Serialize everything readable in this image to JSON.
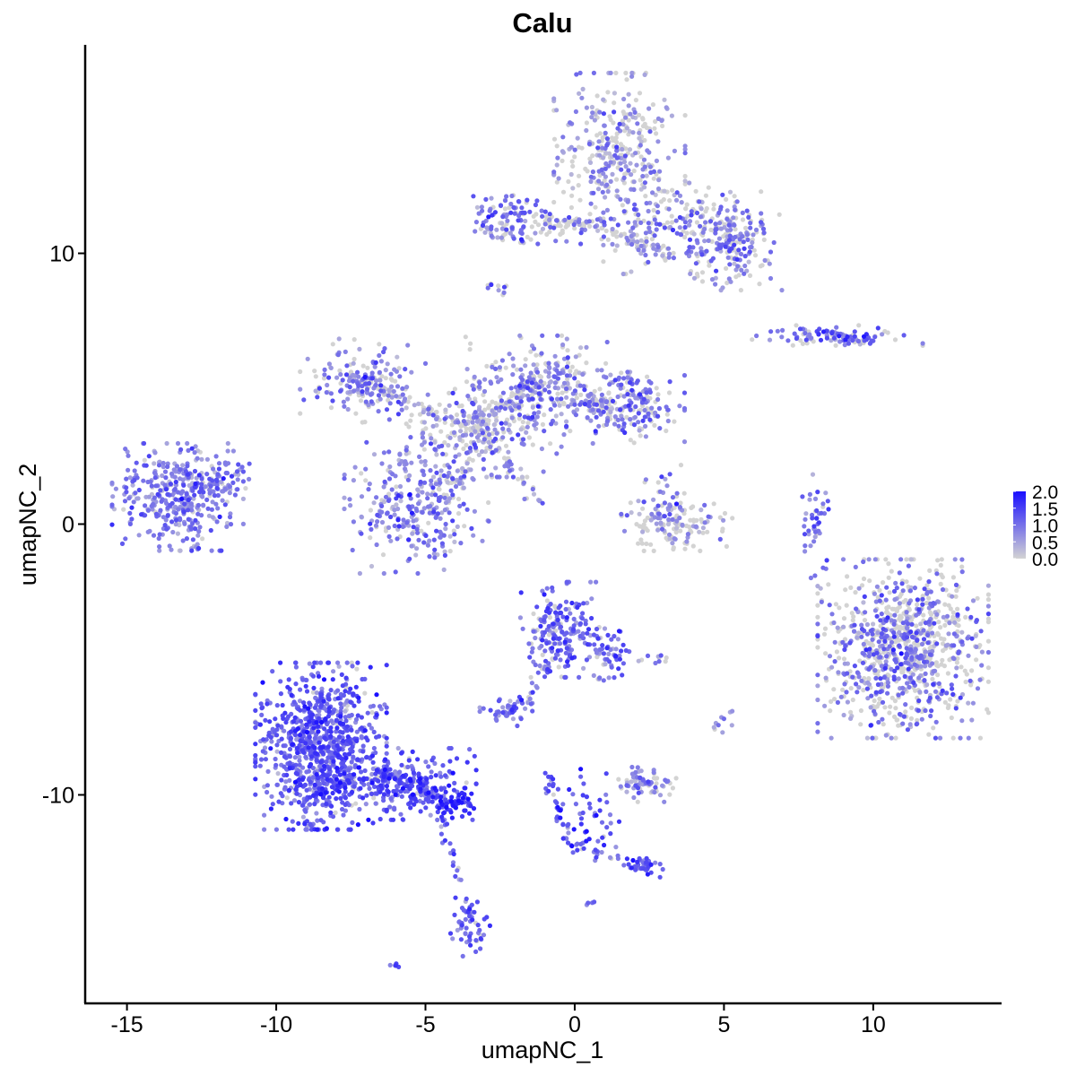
{
  "chart_data": {
    "type": "scatter",
    "title": "Calu",
    "xlabel": "umapNC_1",
    "ylabel": "umapNC_2",
    "xlim": [
      -16.4,
      14.3
    ],
    "ylim": [
      -17.7,
      17.7
    ],
    "x_ticks": [
      -15,
      -10,
      -5,
      0,
      5,
      10
    ],
    "x_tick_labels": [
      "-15",
      "-10",
      "-5",
      "0",
      "5",
      "10"
    ],
    "y_ticks": [
      -10,
      0,
      10
    ],
    "y_tick_labels": [
      "-10",
      "0",
      "10"
    ],
    "grid": false,
    "color_scale": {
      "low_color": "#d3d3d3",
      "high_color": "#1a0fff",
      "min": 0.0,
      "max": 2.0,
      "breaks": [
        0.0,
        0.5,
        1.0,
        1.5,
        2.0
      ],
      "labels": [
        "0.0",
        "0.5",
        "1.0",
        "1.5",
        "2.0"
      ],
      "legend_placement": "right"
    },
    "clusters": [
      {
        "center": [
          1.5,
          13.8
        ],
        "spread": [
          1.0,
          1.3
        ],
        "n": 320,
        "mean_expr": 0.7,
        "expressing_fraction": 0.6
      },
      {
        "center": [
          3.6,
          11.0
        ],
        "spread": [
          1.2,
          0.8
        ],
        "n": 200,
        "mean_expr": 0.8,
        "expressing_fraction": 0.55
      },
      {
        "center": [
          5.4,
          10.4
        ],
        "spread": [
          0.7,
          0.8
        ],
        "n": 160,
        "mean_expr": 0.9,
        "expressing_fraction": 0.6
      },
      {
        "center": [
          -2.3,
          11.3
        ],
        "spread": [
          0.6,
          0.5
        ],
        "n": 90,
        "mean_expr": 1.0,
        "expressing_fraction": 0.75
      },
      {
        "center": [
          -0.5,
          10.9
        ],
        "spread": [
          1.2,
          0.25
        ],
        "n": 60,
        "mean_expr": 0.9,
        "expressing_fraction": 0.6
      },
      {
        "center": [
          8.8,
          6.9
        ],
        "spread": [
          1.3,
          0.2
        ],
        "n": 70,
        "mean_expr": 1.0,
        "expressing_fraction": 0.75
      },
      {
        "center": [
          -13.3,
          1.0
        ],
        "spread": [
          1.0,
          0.9
        ],
        "n": 360,
        "mean_expr": 0.9,
        "expressing_fraction": 0.95
      },
      {
        "center": [
          -12.0,
          1.6
        ],
        "spread": [
          0.7,
          0.5
        ],
        "n": 60,
        "mean_expr": 0.9,
        "expressing_fraction": 0.85
      },
      {
        "center": [
          -7.0,
          5.3
        ],
        "spread": [
          1.0,
          0.7
        ],
        "n": 160,
        "mean_expr": 0.8,
        "expressing_fraction": 0.7
      },
      {
        "center": [
          -1.0,
          5.2
        ],
        "spread": [
          1.0,
          0.8
        ],
        "n": 220,
        "mean_expr": 0.8,
        "expressing_fraction": 0.7
      },
      {
        "center": [
          1.7,
          4.3
        ],
        "spread": [
          0.9,
          0.6
        ],
        "n": 200,
        "mean_expr": 0.9,
        "expressing_fraction": 0.7
      },
      {
        "center": [
          -3.0,
          3.5
        ],
        "spread": [
          1.2,
          0.8
        ],
        "n": 250,
        "mean_expr": 0.7,
        "expressing_fraction": 0.6
      },
      {
        "center": [
          -5.3,
          0.6
        ],
        "spread": [
          1.1,
          1.1
        ],
        "n": 300,
        "mean_expr": 0.8,
        "expressing_fraction": 0.85
      },
      {
        "center": [
          3.3,
          0.0
        ],
        "spread": [
          0.9,
          0.45
        ],
        "n": 130,
        "mean_expr": 0.7,
        "expressing_fraction": 0.5
      },
      {
        "center": [
          11.0,
          -4.6
        ],
        "spread": [
          1.3,
          1.5
        ],
        "n": 900,
        "mean_expr": 0.9,
        "expressing_fraction": 0.5
      },
      {
        "center": [
          -8.5,
          -8.2
        ],
        "spread": [
          1.0,
          1.4
        ],
        "n": 900,
        "mean_expr": 1.2,
        "expressing_fraction": 0.95
      },
      {
        "center": [
          -5.5,
          -9.6
        ],
        "spread": [
          1.0,
          0.6
        ],
        "n": 200,
        "mean_expr": 1.3,
        "expressing_fraction": 0.95
      },
      {
        "center": [
          -4.0,
          -10.3
        ],
        "spread": [
          0.35,
          0.25
        ],
        "n": 60,
        "mean_expr": 1.6,
        "expressing_fraction": 1.0
      },
      {
        "center": [
          -3.5,
          -14.9
        ],
        "spread": [
          0.3,
          0.5
        ],
        "n": 50,
        "mean_expr": 1.2,
        "expressing_fraction": 0.95
      },
      {
        "center": [
          -0.5,
          -3.9
        ],
        "spread": [
          0.6,
          0.8
        ],
        "n": 180,
        "mean_expr": 1.1,
        "expressing_fraction": 0.9
      },
      {
        "center": [
          1.0,
          -4.8
        ],
        "spread": [
          0.4,
          0.5
        ],
        "n": 60,
        "mean_expr": 1.1,
        "expressing_fraction": 0.9
      },
      {
        "center": [
          -2.3,
          -6.9
        ],
        "spread": [
          0.4,
          0.25
        ],
        "n": 50,
        "mean_expr": 1.0,
        "expressing_fraction": 0.9
      },
      {
        "center": [
          2.3,
          -9.6
        ],
        "spread": [
          0.5,
          0.3
        ],
        "n": 70,
        "mean_expr": 0.8,
        "expressing_fraction": 0.75
      },
      {
        "center": [
          0.5,
          -11.0
        ],
        "spread": [
          0.5,
          0.9
        ],
        "n": 50,
        "mean_expr": 1.2,
        "expressing_fraction": 0.95
      },
      {
        "center": [
          2.2,
          -12.6
        ],
        "spread": [
          0.4,
          0.2
        ],
        "n": 30,
        "mean_expr": 1.3,
        "expressing_fraction": 1.0
      },
      {
        "center": [
          8.0,
          -0.2
        ],
        "spread": [
          0.25,
          1.0
        ],
        "n": 25,
        "mean_expr": 1.0,
        "expressing_fraction": 0.9
      },
      {
        "center": [
          2.9,
          1.1
        ],
        "spread": [
          0.4,
          0.6
        ],
        "n": 30,
        "mean_expr": 0.9,
        "expressing_fraction": 0.7
      },
      {
        "center": [
          -8.2,
          -9.9
        ],
        "spread": [
          0.5,
          0.3
        ],
        "n": 50,
        "mean_expr": 1.3,
        "expressing_fraction": 0.95
      },
      {
        "center": [
          -6.1,
          -16.3
        ],
        "spread": [
          0.1,
          0.05
        ],
        "n": 5,
        "mean_expr": 1.0,
        "expressing_fraction": 1.0
      },
      {
        "center": [
          0.6,
          -14.0
        ],
        "spread": [
          0.1,
          0.05
        ],
        "n": 4,
        "mean_expr": 1.0,
        "expressing_fraction": 1.0
      },
      {
        "center": [
          -2.7,
          8.7
        ],
        "spread": [
          0.2,
          0.15
        ],
        "n": 10,
        "mean_expr": 1.0,
        "expressing_fraction": 0.7
      },
      {
        "center": [
          2.8,
          -5.0
        ],
        "spread": [
          0.3,
          0.1
        ],
        "n": 10,
        "mean_expr": 0.9,
        "expressing_fraction": 0.8
      },
      {
        "center": [
          5.0,
          -7.3
        ],
        "spread": [
          0.2,
          0.2
        ],
        "n": 10,
        "mean_expr": 0.9,
        "expressing_fraction": 0.7
      }
    ],
    "bridges": [
      {
        "from": [
          -1.0,
          11.2
        ],
        "to": [
          0.9,
          11.0
        ],
        "n": 40,
        "mean_expr": 0.8,
        "expressing_fraction": 0.5
      },
      {
        "from": [
          1.0,
          10.8
        ],
        "to": [
          3.2,
          10.0
        ],
        "n": 40,
        "mean_expr": 0.7,
        "expressing_fraction": 0.4
      },
      {
        "from": [
          -7.5,
          5.5
        ],
        "to": [
          -3.5,
          3.5
        ],
        "n": 80,
        "mean_expr": 0.7,
        "expressing_fraction": 0.5
      },
      {
        "from": [
          -3.5,
          3.5
        ],
        "to": [
          -1.2,
          5.4
        ],
        "n": 60,
        "mean_expr": 0.7,
        "expressing_fraction": 0.5
      },
      {
        "from": [
          -3.7,
          7.4
        ],
        "to": [
          -3.0,
          3.0
        ],
        "n": 25,
        "mean_expr": 0.7,
        "expressing_fraction": 0.5
      },
      {
        "from": [
          -3.0,
          3.5
        ],
        "to": [
          -1.2,
          0.6
        ],
        "n": 30,
        "mean_expr": 0.8,
        "expressing_fraction": 0.6
      },
      {
        "from": [
          -3.3,
          3.0
        ],
        "to": [
          -4.3,
          1.0
        ],
        "n": 30,
        "mean_expr": 0.8,
        "expressing_fraction": 0.6
      },
      {
        "from": [
          -0.5,
          4.6
        ],
        "to": [
          1.2,
          4.3
        ],
        "n": 40,
        "mean_expr": 0.8,
        "expressing_fraction": 0.5
      },
      {
        "from": [
          -0.6,
          -4.5
        ],
        "to": [
          -1.7,
          -6.7
        ],
        "n": 30,
        "mean_expr": 1.0,
        "expressing_fraction": 0.9
      },
      {
        "from": [
          -7.0,
          -9.0
        ],
        "to": [
          -4.0,
          -10.3
        ],
        "n": 70,
        "mean_expr": 1.3,
        "expressing_fraction": 0.95
      },
      {
        "from": [
          -4.6,
          -10.5
        ],
        "to": [
          -3.5,
          -14.5
        ],
        "n": 30,
        "mean_expr": 1.1,
        "expressing_fraction": 0.8
      },
      {
        "from": [
          -0.9,
          -9.3
        ],
        "to": [
          -0.2,
          -11.8
        ],
        "n": 30,
        "mean_expr": 1.3,
        "expressing_fraction": 0.95
      },
      {
        "from": [
          -0.2,
          -11.8
        ],
        "to": [
          2.4,
          -12.7
        ],
        "n": 30,
        "mean_expr": 1.1,
        "expressing_fraction": 0.9
      },
      {
        "from": [
          8.4,
          1.2
        ],
        "to": [
          7.9,
          -0.8
        ],
        "n": 20,
        "mean_expr": 1.0,
        "expressing_fraction": 0.9
      },
      {
        "from": [
          7.6,
          7.0
        ],
        "to": [
          10.0,
          6.8
        ],
        "n": 30,
        "mean_expr": 1.0,
        "expressing_fraction": 0.8
      }
    ]
  }
}
